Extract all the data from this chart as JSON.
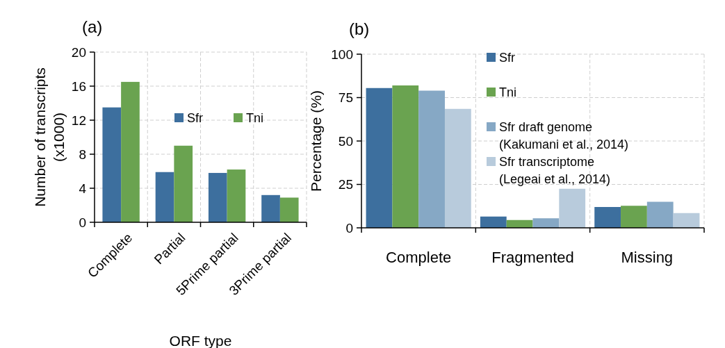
{
  "chart_data": [
    {
      "type": "bar",
      "title": "(a)",
      "xlabel": "ORF type",
      "ylabel": "Number of transcripts (x1000)",
      "categories": [
        "Complete",
        "Partial",
        "5Prime partial",
        "3Prime partial"
      ],
      "series": [
        {
          "name": "Sfr",
          "color": "#3d6f9e",
          "values": [
            13.5,
            5.9,
            5.8,
            3.2
          ]
        },
        {
          "name": "Tni",
          "color": "#6aa350",
          "values": [
            16.5,
            9.0,
            6.2,
            2.9
          ]
        }
      ],
      "ylim": [
        0,
        20
      ],
      "yticks": [
        0,
        4,
        8,
        12,
        16,
        20
      ],
      "grid": true,
      "legend": "top right"
    },
    {
      "type": "bar",
      "title": "(b)",
      "ylabel": "Percentage (%)",
      "categories": [
        "Complete",
        "Fragmented",
        "Missing"
      ],
      "series": [
        {
          "name": "Sfr",
          "color": "#3d6f9e",
          "values": [
            80.5,
            6.5,
            12
          ]
        },
        {
          "name": "Tni",
          "color": "#6aa350",
          "values": [
            82,
            4.5,
            12.7
          ]
        },
        {
          "name": "Sfr draft genome (Kakumani et al., 2014)",
          "color": "#86a8c5",
          "values": [
            79,
            5.5,
            15
          ]
        },
        {
          "name": "Sfr transcriptome (Legeai et al., 2014)",
          "color": "#b8cbdc",
          "values": [
            68.5,
            22.5,
            8.5
          ]
        }
      ],
      "ylim": [
        0,
        100
      ],
      "yticks": [
        0,
        25,
        50,
        75,
        100
      ],
      "grid": true,
      "legend": "top right"
    }
  ]
}
